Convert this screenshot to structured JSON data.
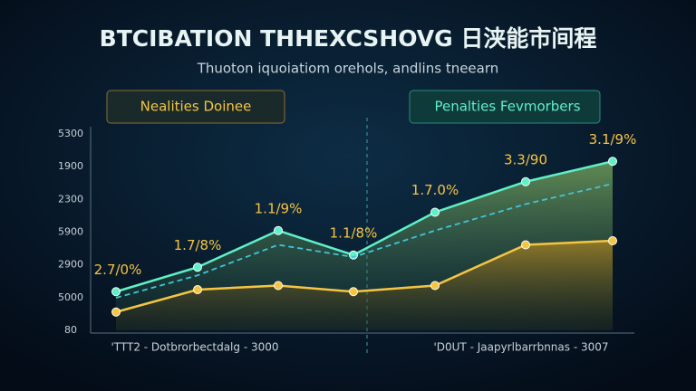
{
  "chart_data": {
    "type": "line",
    "title": "BTCIBATION THHEXCSHOVG 日浃能市间程",
    "subtitle": "Thuoton iquoiatiom orehols, andlins tneearn",
    "y_labels": [
      "5300",
      "1900",
      "2300",
      "5900",
      "2900",
      "5000",
      "80"
    ],
    "x_labels": [
      "'TTT2 - Dotbrorbectdalg - 3000",
      "'D0UT - Jaapyrlbarrbnnas - 3007"
    ],
    "annotations": [
      "2.7/0%",
      "1.7/8%",
      "1.1/9%",
      "1.1/8%",
      "1.7.0%",
      "3.3/90",
      "3.1/9%"
    ],
    "ylim": [
      0,
      100
    ],
    "series": [
      {
        "name": "Penalties Fevmorbers",
        "color": "#5ef0c8",
        "values": [
          19,
          31,
          49,
          37,
          58,
          73,
          83
        ]
      },
      {
        "color": "#3fc6d8",
        "values": [
          16,
          27,
          42,
          36,
          49,
          62,
          72
        ]
      },
      {
        "name": "Nealities Doinee",
        "color": "#f5c542",
        "values": [
          9,
          20,
          22,
          19,
          22,
          42,
          44
        ]
      }
    ]
  }
}
